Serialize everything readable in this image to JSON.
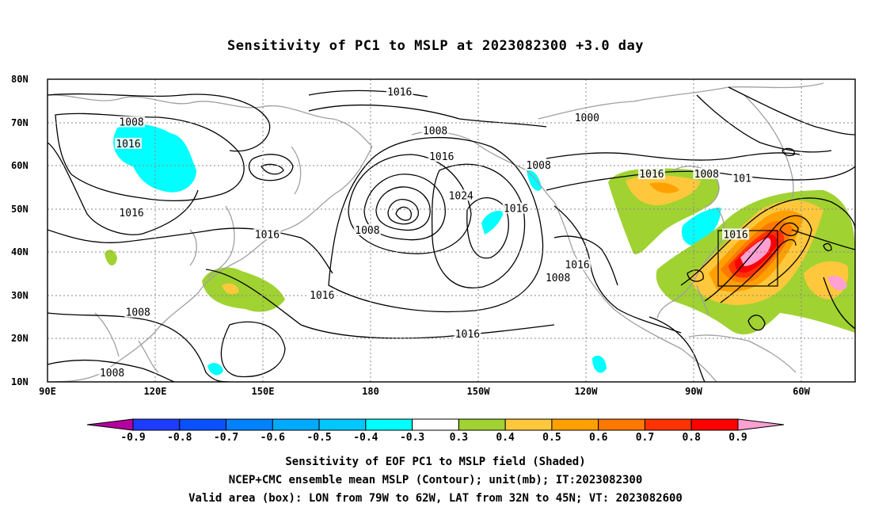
{
  "title": "Sensitivity of PC1 to MSLP at 2023082300 +3.0 day",
  "axes": {
    "lat_labels": [
      "80N",
      "70N",
      "60N",
      "50N",
      "40N",
      "30N",
      "20N",
      "10N"
    ],
    "lon_labels": [
      "90E",
      "120E",
      "150E",
      "180",
      "150W",
      "120W",
      "90W",
      "60W"
    ]
  },
  "contour_labels": [
    {
      "text": "1016",
      "lon": -161,
      "lat": 77
    },
    {
      "text": "1008",
      "lon": 116,
      "lat": 70
    },
    {
      "text": "1016",
      "lon": 115,
      "lat": 65
    },
    {
      "text": "1008",
      "lon": -150,
      "lat": 68
    },
    {
      "text": "1000",
      "lon": -103,
      "lat": 71
    },
    {
      "text": "1016",
      "lon": -148,
      "lat": 62
    },
    {
      "text": "1008",
      "lon": -118,
      "lat": 60
    },
    {
      "text": "1016",
      "lon": -83,
      "lat": 58
    },
    {
      "text": "1008",
      "lon": -66,
      "lat": 58
    },
    {
      "text": "101",
      "lon": -55,
      "lat": 57
    },
    {
      "text": "1024",
      "lon": -142,
      "lat": 53
    },
    {
      "text": "1016",
      "lon": -125,
      "lat": 50
    },
    {
      "text": "1016",
      "lon": 116,
      "lat": 49
    },
    {
      "text": "1016",
      "lon": 158,
      "lat": 44
    },
    {
      "text": "1008",
      "lon": -171,
      "lat": 45
    },
    {
      "text": "1016",
      "lon": -57,
      "lat": 44
    },
    {
      "text": "1016",
      "lon": -106,
      "lat": 37
    },
    {
      "text": "1008",
      "lon": -112,
      "lat": 34
    },
    {
      "text": "1016",
      "lon": 175,
      "lat": 30
    },
    {
      "text": "1008",
      "lon": 118,
      "lat": 26
    },
    {
      "text": "1016",
      "lon": -140,
      "lat": 21
    },
    {
      "text": "1008",
      "lon": 110,
      "lat": 12
    }
  ],
  "colorbar": {
    "labels": [
      "-0.9",
      "-0.8",
      "-0.7",
      "-0.6",
      "-0.5",
      "-0.4",
      "-0.3",
      "0.3",
      "0.4",
      "0.5",
      "0.6",
      "0.7",
      "0.8",
      "0.9"
    ],
    "colors": [
      "#b4009e",
      "#1e3cff",
      "#0a50ff",
      "#0082ff",
      "#00aaff",
      "#00c8ff",
      "#00ffff",
      "#ffffff",
      "#a0d232",
      "#ffc83c",
      "#ffa000",
      "#ff7800",
      "#ff3200",
      "#ff0000",
      "#ffa0d2"
    ]
  },
  "captions": {
    "line1": "Sensitivity of EOF PC1 to MSLP field (Shaded)",
    "line2": "NCEP+CMC ensemble mean MSLP (Contour); unit(mb); IT:2023082300",
    "line3": "Valid area (box): LON from 79W to 62W, LAT from 32N to 45N; VT: 2023082600"
  },
  "valid_box": {
    "lon_min": -79,
    "lon_max": -62,
    "lat_min": 32,
    "lat_max": 45
  }
}
